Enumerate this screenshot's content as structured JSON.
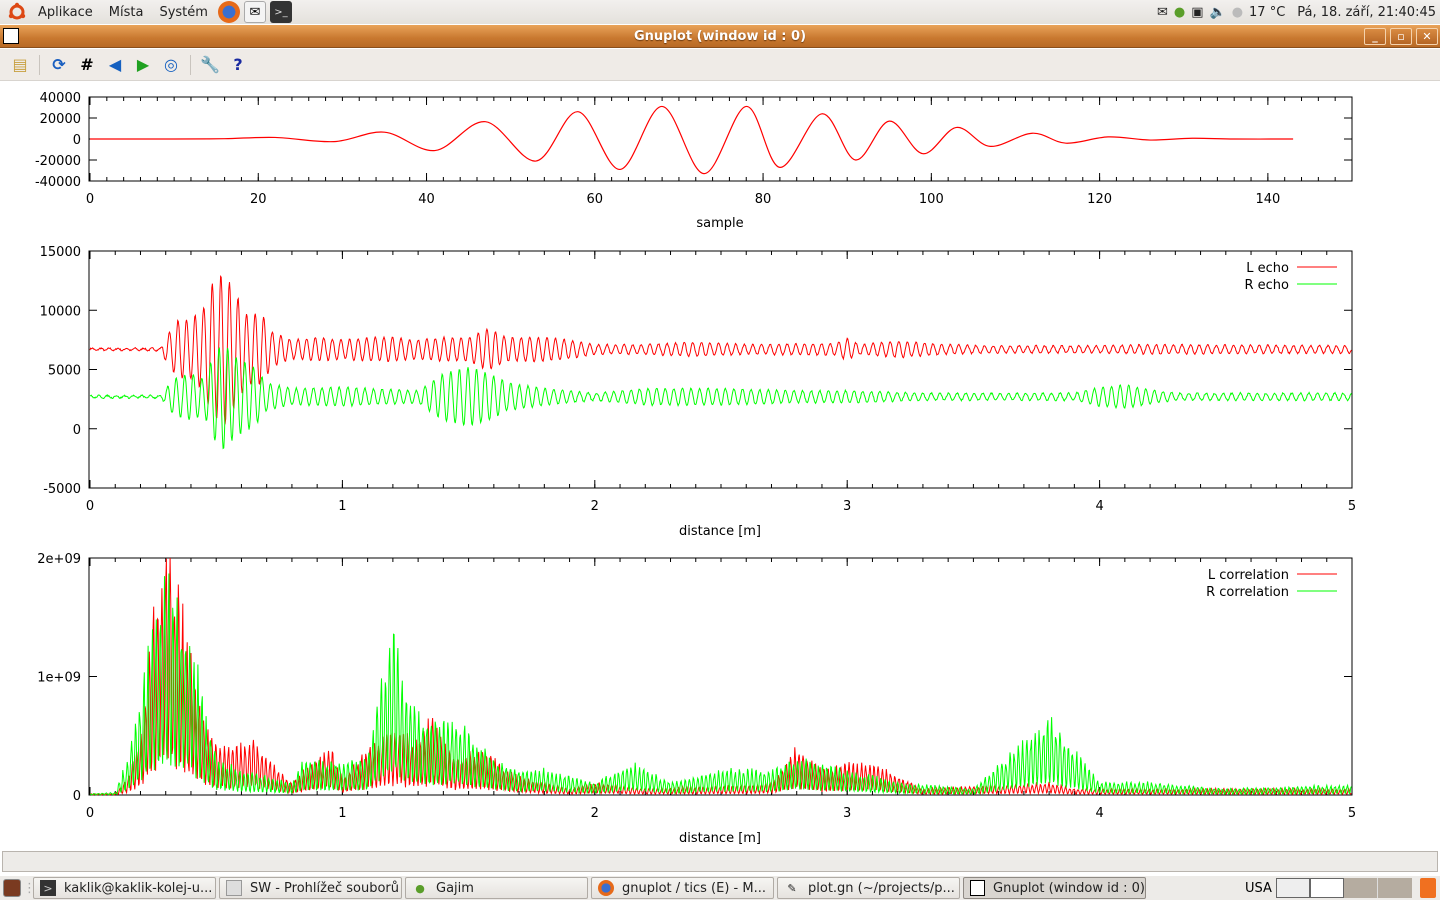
{
  "top_panel": {
    "menus": [
      "Aplikace",
      "Místa",
      "Systém"
    ],
    "launchers": [
      "firefox-icon",
      "mail-icon",
      "terminal-icon"
    ],
    "tray": {
      "temperature": "17 °C",
      "datetime": "Pá, 18. září, 21:40:45"
    }
  },
  "window": {
    "title": "Gnuplot (window id : 0)",
    "controls": [
      "minimize",
      "maximize",
      "close"
    ],
    "toolbar": [
      "copy-to-clipboard",
      "replot",
      "toggle-grid",
      "previous-zoom",
      "next-zoom",
      "autoscale",
      "preferences",
      "help"
    ]
  },
  "taskbar": {
    "items": [
      {
        "label": "kaklik@kaklik-kolej-u...",
        "icon": "terminal-icon"
      },
      {
        "label": "SW - Prohlížeč souborů",
        "icon": "file-manager-icon"
      },
      {
        "label": "Gajim",
        "icon": "gajim-icon"
      },
      {
        "label": "gnuplot / tics (E) - M...",
        "icon": "firefox-icon"
      },
      {
        "label": "plot.gn (~/projects/p...",
        "icon": "text-editor-icon"
      },
      {
        "label": "Gnuplot (window id : 0)",
        "icon": "gnuplot-icon",
        "active": true
      }
    ],
    "keyboard_layout": "USA"
  },
  "chart_data": [
    {
      "type": "line",
      "xlabel": "sample",
      "ylabel": "",
      "xlim": [
        0,
        150
      ],
      "ylim": [
        -40000,
        40000
      ],
      "xticks": [
        "0",
        "20",
        "40",
        "60",
        "80",
        "100",
        "120",
        "140"
      ],
      "yticks": [
        "40000",
        "20000",
        "0",
        "-20000",
        "-40000"
      ],
      "color": "#ff0000",
      "points": [
        [
          0,
          0
        ],
        [
          10,
          0
        ],
        [
          16,
          300
        ],
        [
          22,
          1500
        ],
        [
          29,
          -2500
        ],
        [
          35,
          6500
        ],
        [
          41,
          -11000
        ],
        [
          47,
          16500
        ],
        [
          53,
          -21000
        ],
        [
          58,
          26000
        ],
        [
          63,
          -29000
        ],
        [
          68,
          31000
        ],
        [
          73,
          -33000
        ],
        [
          78,
          31000
        ],
        [
          82,
          -27000
        ],
        [
          87,
          24000
        ],
        [
          91,
          -20000
        ],
        [
          95,
          17000
        ],
        [
          99,
          -14000
        ],
        [
          103,
          11000
        ],
        [
          107,
          -7000
        ],
        [
          112,
          5500
        ],
        [
          116,
          -4000
        ],
        [
          121,
          2000
        ],
        [
          126,
          -1000
        ],
        [
          131,
          700
        ],
        [
          136,
          0
        ],
        [
          143,
          0
        ]
      ]
    },
    {
      "type": "line",
      "xlabel": "distance [m]",
      "ylabel": "",
      "xlim": [
        0,
        5
      ],
      "ylim": [
        -5000,
        15000
      ],
      "xticks": [
        "0",
        "1",
        "2",
        "3",
        "4",
        "5"
      ],
      "yticks": [
        "15000",
        "10000",
        "5000",
        "0",
        "-5000"
      ],
      "legend": "top-right",
      "series": [
        {
          "name": "L echo",
          "color": "#ff0000",
          "baseline": 6700,
          "envelope": [
            [
              0,
              100
            ],
            [
              0.28,
              100
            ],
            [
              0.3,
              1000
            ],
            [
              0.35,
              2500
            ],
            [
              0.4,
              2500
            ],
            [
              0.45,
              3500
            ],
            [
              0.48,
              5500
            ],
            [
              0.53,
              6500
            ],
            [
              0.57,
              5000
            ],
            [
              0.62,
              3000
            ],
            [
              0.68,
              3000
            ],
            [
              0.72,
              1500
            ],
            [
              0.8,
              800
            ],
            [
              0.9,
              1000
            ],
            [
              1.0,
              800
            ],
            [
              1.1,
              1000
            ],
            [
              1.2,
              1000
            ],
            [
              1.3,
              800
            ],
            [
              1.4,
              1000
            ],
            [
              1.5,
              1000
            ],
            [
              1.58,
              1800
            ],
            [
              1.65,
              1000
            ],
            [
              1.8,
              1000
            ],
            [
              1.9,
              800
            ],
            [
              2.0,
              400
            ],
            [
              2.2,
              400
            ],
            [
              2.4,
              600
            ],
            [
              2.6,
              400
            ],
            [
              2.95,
              500
            ],
            [
              3.0,
              900
            ],
            [
              3.05,
              400
            ],
            [
              3.2,
              700
            ],
            [
              3.4,
              400
            ],
            [
              3.6,
              300
            ],
            [
              4.0,
              300
            ],
            [
              4.2,
              400
            ],
            [
              5,
              300
            ]
          ]
        },
        {
          "name": "R echo",
          "color": "#00ff00",
          "baseline": 2700,
          "envelope": [
            [
              0,
              100
            ],
            [
              0.28,
              100
            ],
            [
              0.33,
              1500
            ],
            [
              0.4,
              2000
            ],
            [
              0.45,
              1500
            ],
            [
              0.5,
              4000
            ],
            [
              0.53,
              4500
            ],
            [
              0.57,
              3500
            ],
            [
              0.65,
              2500
            ],
            [
              0.7,
              1200
            ],
            [
              0.8,
              700
            ],
            [
              1.0,
              800
            ],
            [
              1.2,
              600
            ],
            [
              1.3,
              500
            ],
            [
              1.4,
              2000
            ],
            [
              1.5,
              2500
            ],
            [
              1.58,
              2000
            ],
            [
              1.65,
              1200
            ],
            [
              1.8,
              700
            ],
            [
              2.0,
              300
            ],
            [
              2.2,
              700
            ],
            [
              2.5,
              700
            ],
            [
              2.8,
              500
            ],
            [
              3.0,
              500
            ],
            [
              3.3,
              300
            ],
            [
              3.6,
              300
            ],
            [
              3.9,
              300
            ],
            [
              4.0,
              800
            ],
            [
              4.1,
              1000
            ],
            [
              4.2,
              600
            ],
            [
              4.3,
              300
            ],
            [
              5,
              300
            ]
          ]
        }
      ]
    },
    {
      "type": "line",
      "xlabel": "distance [m]",
      "ylabel": "",
      "xlim": [
        0,
        5
      ],
      "ylim": [
        0,
        2000000000
      ],
      "xticks": [
        "0",
        "1",
        "2",
        "3",
        "4",
        "5"
      ],
      "yticks": [
        "2e+09",
        "1e+09",
        "0"
      ],
      "legend": "top-right",
      "series": [
        {
          "name": "L correlation",
          "color": "#ff0000",
          "envelope": [
            [
              0,
              0.01
            ],
            [
              0.1,
              0.01
            ],
            [
              0.15,
              0.15
            ],
            [
              0.2,
              0.5
            ],
            [
              0.25,
              1.5
            ],
            [
              0.3,
              2.0
            ],
            [
              0.35,
              1.6
            ],
            [
              0.4,
              1.1
            ],
            [
              0.45,
              0.6
            ],
            [
              0.5,
              0.4
            ],
            [
              0.6,
              0.4
            ],
            [
              0.65,
              0.45
            ],
            [
              0.7,
              0.3
            ],
            [
              0.8,
              0.1
            ],
            [
              0.95,
              0.4
            ],
            [
              1.0,
              0.15
            ],
            [
              1.2,
              0.55
            ],
            [
              1.3,
              0.45
            ],
            [
              1.35,
              0.6
            ],
            [
              1.45,
              0.3
            ],
            [
              1.55,
              0.35
            ],
            [
              1.7,
              0.15
            ],
            [
              1.9,
              0.05
            ],
            [
              2.0,
              0.1
            ],
            [
              2.2,
              0.05
            ],
            [
              2.6,
              0.08
            ],
            [
              2.7,
              0.1
            ],
            [
              2.8,
              0.38
            ],
            [
              2.9,
              0.2
            ],
            [
              3.0,
              0.25
            ],
            [
              3.1,
              0.25
            ],
            [
              3.3,
              0.05
            ],
            [
              3.8,
              0.1
            ],
            [
              3.9,
              0.05
            ],
            [
              5,
              0.05
            ]
          ]
        },
        {
          "name": "R correlation",
          "color": "#00ff00",
          "envelope": [
            [
              0,
              0.01
            ],
            [
              0.1,
              0.02
            ],
            [
              0.15,
              0.3
            ],
            [
              0.2,
              0.8
            ],
            [
              0.25,
              1.4
            ],
            [
              0.3,
              1.7
            ],
            [
              0.35,
              1.5
            ],
            [
              0.4,
              1.3
            ],
            [
              0.45,
              0.7
            ],
            [
              0.5,
              0.3
            ],
            [
              0.6,
              0.2
            ],
            [
              0.8,
              0.1
            ],
            [
              0.85,
              0.3
            ],
            [
              1.0,
              0.25
            ],
            [
              1.1,
              0.3
            ],
            [
              1.2,
              1.4
            ],
            [
              1.25,
              0.8
            ],
            [
              1.35,
              0.55
            ],
            [
              1.45,
              0.6
            ],
            [
              1.6,
              0.3
            ],
            [
              1.7,
              0.2
            ],
            [
              1.8,
              0.2
            ],
            [
              2.0,
              0.1
            ],
            [
              2.15,
              0.25
            ],
            [
              2.3,
              0.1
            ],
            [
              2.5,
              0.2
            ],
            [
              2.7,
              0.2
            ],
            [
              2.8,
              0.3
            ],
            [
              3.0,
              0.2
            ],
            [
              3.2,
              0.1
            ],
            [
              3.5,
              0.05
            ],
            [
              3.8,
              0.6
            ],
            [
              3.9,
              0.35
            ],
            [
              4.0,
              0.1
            ],
            [
              4.2,
              0.1
            ],
            [
              4.5,
              0.05
            ],
            [
              5,
              0.08
            ]
          ]
        }
      ]
    }
  ]
}
